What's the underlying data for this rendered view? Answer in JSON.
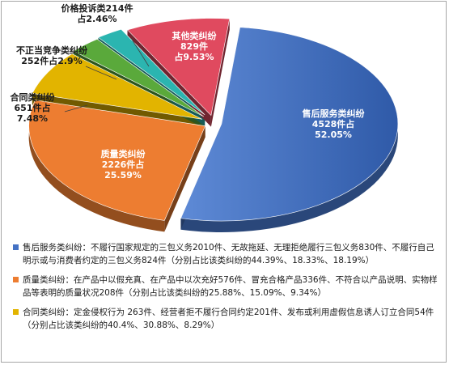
{
  "chart_data": {
    "type": "pie",
    "title": "",
    "slices": [
      {
        "name": "售后服务类纠纷",
        "count_label": "4528件占",
        "percent_label": "52.05%",
        "value": 52.05,
        "color": "#4472c4"
      },
      {
        "name": "质量类纠纷",
        "count_label": "2226件占",
        "percent_label": "25.59%",
        "value": 25.59,
        "color": "#ed7d31"
      },
      {
        "name": "合同类纠纷",
        "count_label": "651件占",
        "percent_label": "7.48%",
        "value": 7.48,
        "color": "#e2b400"
      },
      {
        "name": "不正当竞争类纠纷",
        "count_label": "252件占2.9%",
        "percent_label": "",
        "value": 2.9,
        "color": "#5aa93b"
      },
      {
        "name": "价格投诉类214件",
        "count_label": "占2.46%",
        "percent_label": "",
        "value": 2.46,
        "color": "#2bb5b0"
      },
      {
        "name": "其他类纠纷",
        "count_label": "829件",
        "percent_label": "占9.53%",
        "value": 9.53,
        "color": "#e04a5f"
      }
    ]
  },
  "legend": [
    {
      "color": "#4472c4",
      "text": "售后服务类纠纷：不履行国家规定的三包义务2010件、无故拖延、无理拒绝履行三包义务830件、不履行自己明示或与消费者约定的三包义务824件（分别占比该类纠纷的44.39%、18.33%、18.19%）"
    },
    {
      "color": "#ed7d31",
      "text": "质量类纠纷：在产品中以假充真、在产品中以次充好576件、冒充合格产品336件、不符合以产品说明、实物样品等表明的质量状况208件（分别占比该类纠纷的25.88%、15.09%、9.34%）"
    },
    {
      "color": "#e2b400",
      "text": "合同类纠纷：定金侵权行为 263件、经营者拒不履行合同约定201件、发布或利用虚假信息诱人订立合同54件（分别占比该类纠纷的40.4%、30.88%、8.29%）"
    }
  ]
}
